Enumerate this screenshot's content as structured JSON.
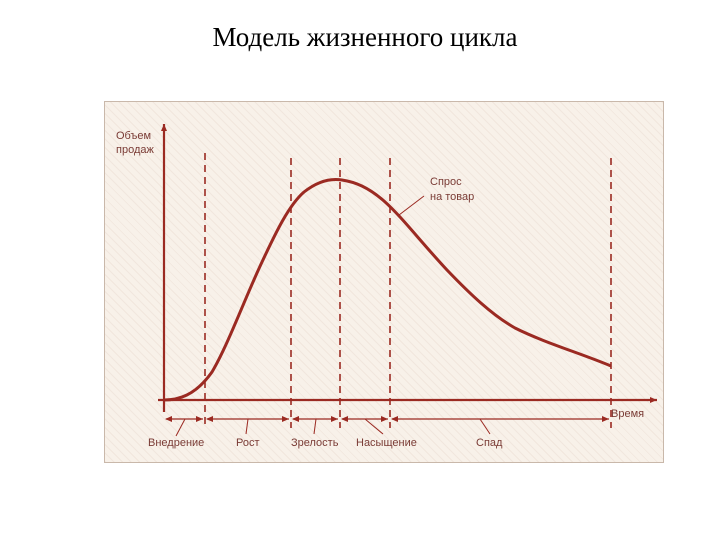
{
  "title": "Модель жизненного цикла",
  "axis": {
    "y_label_line1": "Объем",
    "y_label_line2": "продаж",
    "x_label": "Время"
  },
  "curve_label": {
    "line1": "Спрос",
    "line2": "на товар"
  },
  "stages": [
    "Внедрение",
    "Рост",
    "Зрелость",
    "Насыщение",
    "Спад"
  ],
  "colors": {
    "curve": "#9b2a22",
    "axis": "#9b2a22",
    "text": "#7a3b35",
    "background": "#f8f1e9"
  }
}
